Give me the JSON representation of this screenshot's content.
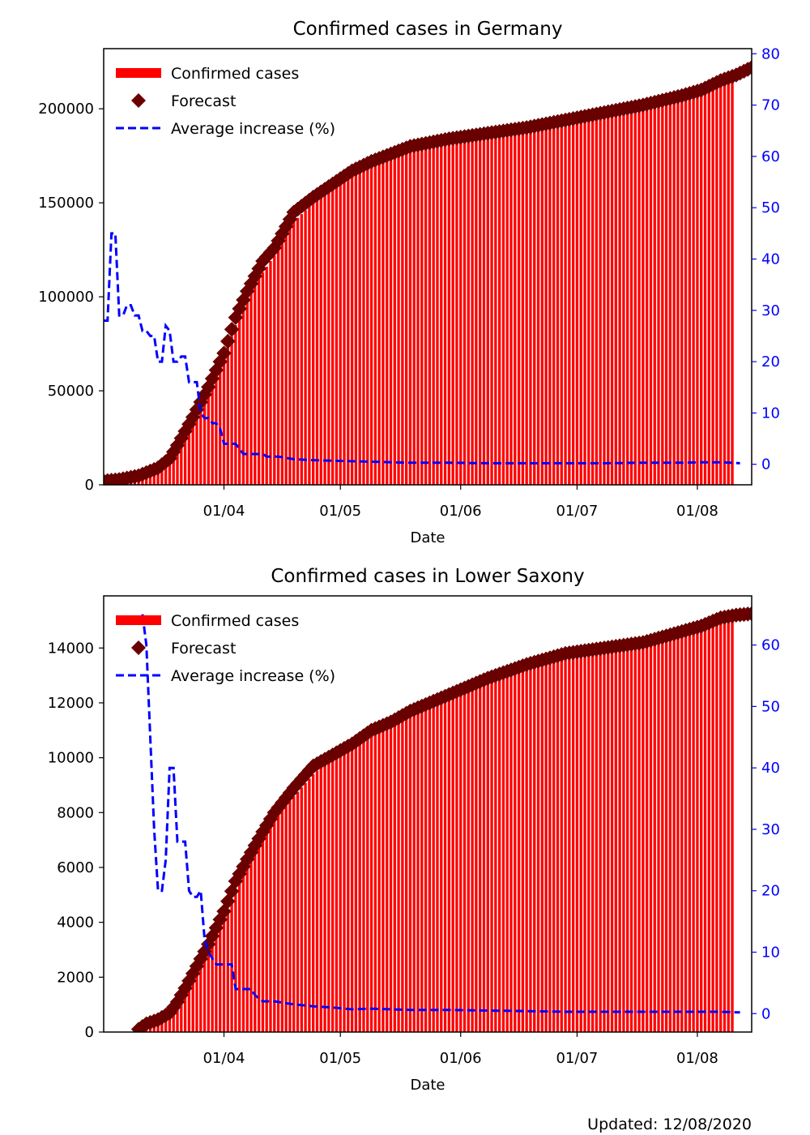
{
  "chart_data": [
    {
      "type": "bar",
      "title": "Confirmed cases in Germany",
      "xlabel": "Date",
      "ylabel": "",
      "x_range_days": [
        1,
        168
      ],
      "x_ticks": [
        {
          "label": "01/04",
          "day": 32
        },
        {
          "label": "01/05",
          "day": 62
        },
        {
          "label": "01/06",
          "day": 93
        },
        {
          "label": "01/07",
          "day": 123
        },
        {
          "label": "01/08",
          "day": 154
        }
      ],
      "ylim": [
        0,
        232000
      ],
      "y_ticks": [
        0,
        50000,
        100000,
        150000,
        200000
      ],
      "y2lim": [
        -4,
        81
      ],
      "y2_ticks": [
        0,
        10,
        20,
        30,
        40,
        50,
        60,
        70,
        80
      ],
      "legend": [
        "Confirmed cases",
        "Forecast",
        "Average increase (%)"
      ],
      "series": [
        {
          "name": "Confirmed cases",
          "kind": "bars",
          "points": [
            [
              1,
              400
            ],
            [
              5,
              1100
            ],
            [
              10,
              3000
            ],
            [
              15,
              7000
            ],
            [
              18,
              12000
            ],
            [
              20,
              19000
            ],
            [
              24,
              35000
            ],
            [
              28,
              50000
            ],
            [
              32,
              67000
            ],
            [
              35,
              85000
            ],
            [
              38,
              100000
            ],
            [
              42,
              113000
            ],
            [
              45,
              122000
            ],
            [
              50,
              140000
            ],
            [
              55,
              150000
            ],
            [
              60,
              158000
            ],
            [
              65,
              165000
            ],
            [
              70,
              170000
            ],
            [
              75,
              174000
            ],
            [
              80,
              178000
            ],
            [
              90,
              182000
            ],
            [
              100,
              185000
            ],
            [
              110,
              188000
            ],
            [
              120,
              192000
            ],
            [
              130,
              196000
            ],
            [
              140,
              200000
            ],
            [
              150,
              205000
            ],
            [
              155,
              208000
            ],
            [
              160,
              212000
            ],
            [
              163,
              216000
            ]
          ]
        },
        {
          "name": "Forecast",
          "kind": "markers",
          "points": [
            [
              1,
              2000
            ],
            [
              5,
              2800
            ],
            [
              10,
              4800
            ],
            [
              15,
              9000
            ],
            [
              18,
              14000
            ],
            [
              20,
              21000
            ],
            [
              24,
              36000
            ],
            [
              28,
              52000
            ],
            [
              32,
              70000
            ],
            [
              35,
              89000
            ],
            [
              38,
              103000
            ],
            [
              42,
              119000
            ],
            [
              45,
              126000
            ],
            [
              50,
              145000
            ],
            [
              55,
              153000
            ],
            [
              60,
              160000
            ],
            [
              65,
              167000
            ],
            [
              70,
              172000
            ],
            [
              75,
              176000
            ],
            [
              80,
              180000
            ],
            [
              90,
              184000
            ],
            [
              100,
              187000
            ],
            [
              110,
              190000
            ],
            [
              120,
              194000
            ],
            [
              130,
              198000
            ],
            [
              140,
              202000
            ],
            [
              150,
              207000
            ],
            [
              155,
              210000
            ],
            [
              160,
              215000
            ],
            [
              164,
              218000
            ],
            [
              168,
              222000
            ]
          ]
        },
        {
          "name": "Average increase (%)",
          "kind": "line",
          "axis": "right",
          "points": [
            [
              1,
              28
            ],
            [
              2,
              28
            ],
            [
              3,
              45
            ],
            [
              4,
              45
            ],
            [
              5,
              29
            ],
            [
              6,
              29
            ],
            [
              7,
              31
            ],
            [
              8,
              31
            ],
            [
              9,
              29
            ],
            [
              10,
              29
            ],
            [
              11,
              26
            ],
            [
              12,
              26
            ],
            [
              13,
              25
            ],
            [
              14,
              25
            ],
            [
              15,
              20
            ],
            [
              16,
              20
            ],
            [
              17,
              27
            ],
            [
              18,
              26
            ],
            [
              19,
              20
            ],
            [
              20,
              20
            ],
            [
              21,
              21
            ],
            [
              22,
              21
            ],
            [
              23,
              16
            ],
            [
              24,
              16
            ],
            [
              25,
              16
            ],
            [
              26,
              10
            ],
            [
              27,
              9
            ],
            [
              28,
              9
            ],
            [
              29,
              8
            ],
            [
              30,
              8
            ],
            [
              31,
              7
            ],
            [
              32,
              4
            ],
            [
              33,
              4
            ],
            [
              34,
              4
            ],
            [
              35,
              4
            ],
            [
              36,
              3
            ],
            [
              37,
              2
            ],
            [
              38,
              2
            ],
            [
              40,
              2
            ],
            [
              42,
              2
            ],
            [
              43,
              1.5
            ],
            [
              46,
              1.5
            ],
            [
              50,
              1
            ],
            [
              55,
              0.8
            ],
            [
              60,
              0.7
            ],
            [
              70,
              0.5
            ],
            [
              80,
              0.3
            ],
            [
              90,
              0.3
            ],
            [
              100,
              0.2
            ],
            [
              110,
              0.2
            ],
            [
              120,
              0.2
            ],
            [
              130,
              0.2
            ],
            [
              140,
              0.3
            ],
            [
              150,
              0.3
            ],
            [
              155,
              0.4
            ],
            [
              160,
              0.4
            ],
            [
              165,
              0.2
            ]
          ]
        }
      ]
    },
    {
      "type": "bar",
      "title": "Confirmed cases in Lower Saxony",
      "xlabel": "Date",
      "ylabel": "",
      "x_range_days": [
        1,
        168
      ],
      "x_ticks": [
        {
          "label": "01/04",
          "day": 32
        },
        {
          "label": "01/05",
          "day": 62
        },
        {
          "label": "01/06",
          "day": 93
        },
        {
          "label": "01/07",
          "day": 123
        },
        {
          "label": "01/08",
          "day": 154
        }
      ],
      "ylim": [
        0,
        15900
      ],
      "y_ticks": [
        0,
        2000,
        4000,
        6000,
        8000,
        10000,
        12000,
        14000
      ],
      "y2_ticks": [
        0,
        10,
        20,
        30,
        40,
        50,
        60
      ],
      "y2lim": [
        -3,
        68
      ],
      "legend": [
        "Confirmed cases",
        "Forecast",
        "Average increase (%)"
      ],
      "series": [
        {
          "name": "Confirmed cases",
          "kind": "bars",
          "points": [
            [
              10,
              100
            ],
            [
              12,
              250
            ],
            [
              15,
              400
            ],
            [
              18,
              600
            ],
            [
              20,
              1000
            ],
            [
              22,
              1500
            ],
            [
              25,
              2200
            ],
            [
              28,
              3000
            ],
            [
              32,
              4100
            ],
            [
              35,
              5200
            ],
            [
              38,
              6000
            ],
            [
              42,
              7000
            ],
            [
              45,
              7800
            ],
            [
              50,
              8600
            ],
            [
              55,
              9400
            ],
            [
              60,
              10000
            ],
            [
              65,
              10400
            ],
            [
              70,
              10900
            ],
            [
              75,
              11200
            ],
            [
              80,
              11500
            ],
            [
              90,
              12100
            ],
            [
              100,
              12800
            ],
            [
              110,
              13300
            ],
            [
              120,
              13700
            ],
            [
              130,
              13900
            ],
            [
              140,
              14100
            ],
            [
              150,
              14500
            ],
            [
              155,
              14700
            ],
            [
              160,
              15000
            ],
            [
              163,
              15100
            ]
          ]
        },
        {
          "name": "Forecast",
          "kind": "markers",
          "points": [
            [
              10,
              100
            ],
            [
              12,
              300
            ],
            [
              15,
              450
            ],
            [
              18,
              700
            ],
            [
              20,
              1100
            ],
            [
              22,
              1600
            ],
            [
              25,
              2400
            ],
            [
              28,
              3200
            ],
            [
              32,
              4400
            ],
            [
              35,
              5500
            ],
            [
              38,
              6300
            ],
            [
              42,
              7300
            ],
            [
              45,
              8000
            ],
            [
              50,
              8900
            ],
            [
              55,
              9700
            ],
            [
              60,
              10100
            ],
            [
              65,
              10500
            ],
            [
              70,
              11000
            ],
            [
              75,
              11300
            ],
            [
              80,
              11700
            ],
            [
              90,
              12300
            ],
            [
              100,
              12900
            ],
            [
              110,
              13400
            ],
            [
              120,
              13800
            ],
            [
              130,
              14000
            ],
            [
              140,
              14200
            ],
            [
              150,
              14600
            ],
            [
              155,
              14800
            ],
            [
              160,
              15100
            ],
            [
              164,
              15200
            ],
            [
              168,
              15250
            ]
          ]
        },
        {
          "name": "Average increase (%)",
          "kind": "line",
          "axis": "right",
          "points": [
            [
              11,
              65
            ],
            [
              12,
              60
            ],
            [
              13,
              45
            ],
            [
              14,
              30
            ],
            [
              15,
              20
            ],
            [
              16,
              20
            ],
            [
              17,
              25
            ],
            [
              18,
              40
            ],
            [
              19,
              40
            ],
            [
              20,
              28
            ],
            [
              21,
              28
            ],
            [
              22,
              28
            ],
            [
              23,
              20
            ],
            [
              24,
              19
            ],
            [
              25,
              19
            ],
            [
              26,
              20
            ],
            [
              27,
              12
            ],
            [
              28,
              10
            ],
            [
              29,
              9
            ],
            [
              30,
              8
            ],
            [
              31,
              8
            ],
            [
              32,
              8
            ],
            [
              33,
              8
            ],
            [
              34,
              8
            ],
            [
              35,
              4
            ],
            [
              36,
              4
            ],
            [
              37,
              4
            ],
            [
              38,
              4
            ],
            [
              39,
              4
            ],
            [
              40,
              3
            ],
            [
              42,
              2
            ],
            [
              45,
              2
            ],
            [
              50,
              1.5
            ],
            [
              55,
              1.2
            ],
            [
              60,
              1
            ],
            [
              65,
              0.7
            ],
            [
              70,
              0.8
            ],
            [
              80,
              0.6
            ],
            [
              90,
              0.6
            ],
            [
              100,
              0.5
            ],
            [
              110,
              0.4
            ],
            [
              120,
              0.3
            ],
            [
              130,
              0.3
            ],
            [
              140,
              0.3
            ],
            [
              150,
              0.3
            ],
            [
              155,
              0.3
            ],
            [
              160,
              0.3
            ],
            [
              165,
              0.2
            ]
          ]
        }
      ]
    }
  ],
  "footer": {
    "updated": "Updated: 12/08/2020"
  }
}
